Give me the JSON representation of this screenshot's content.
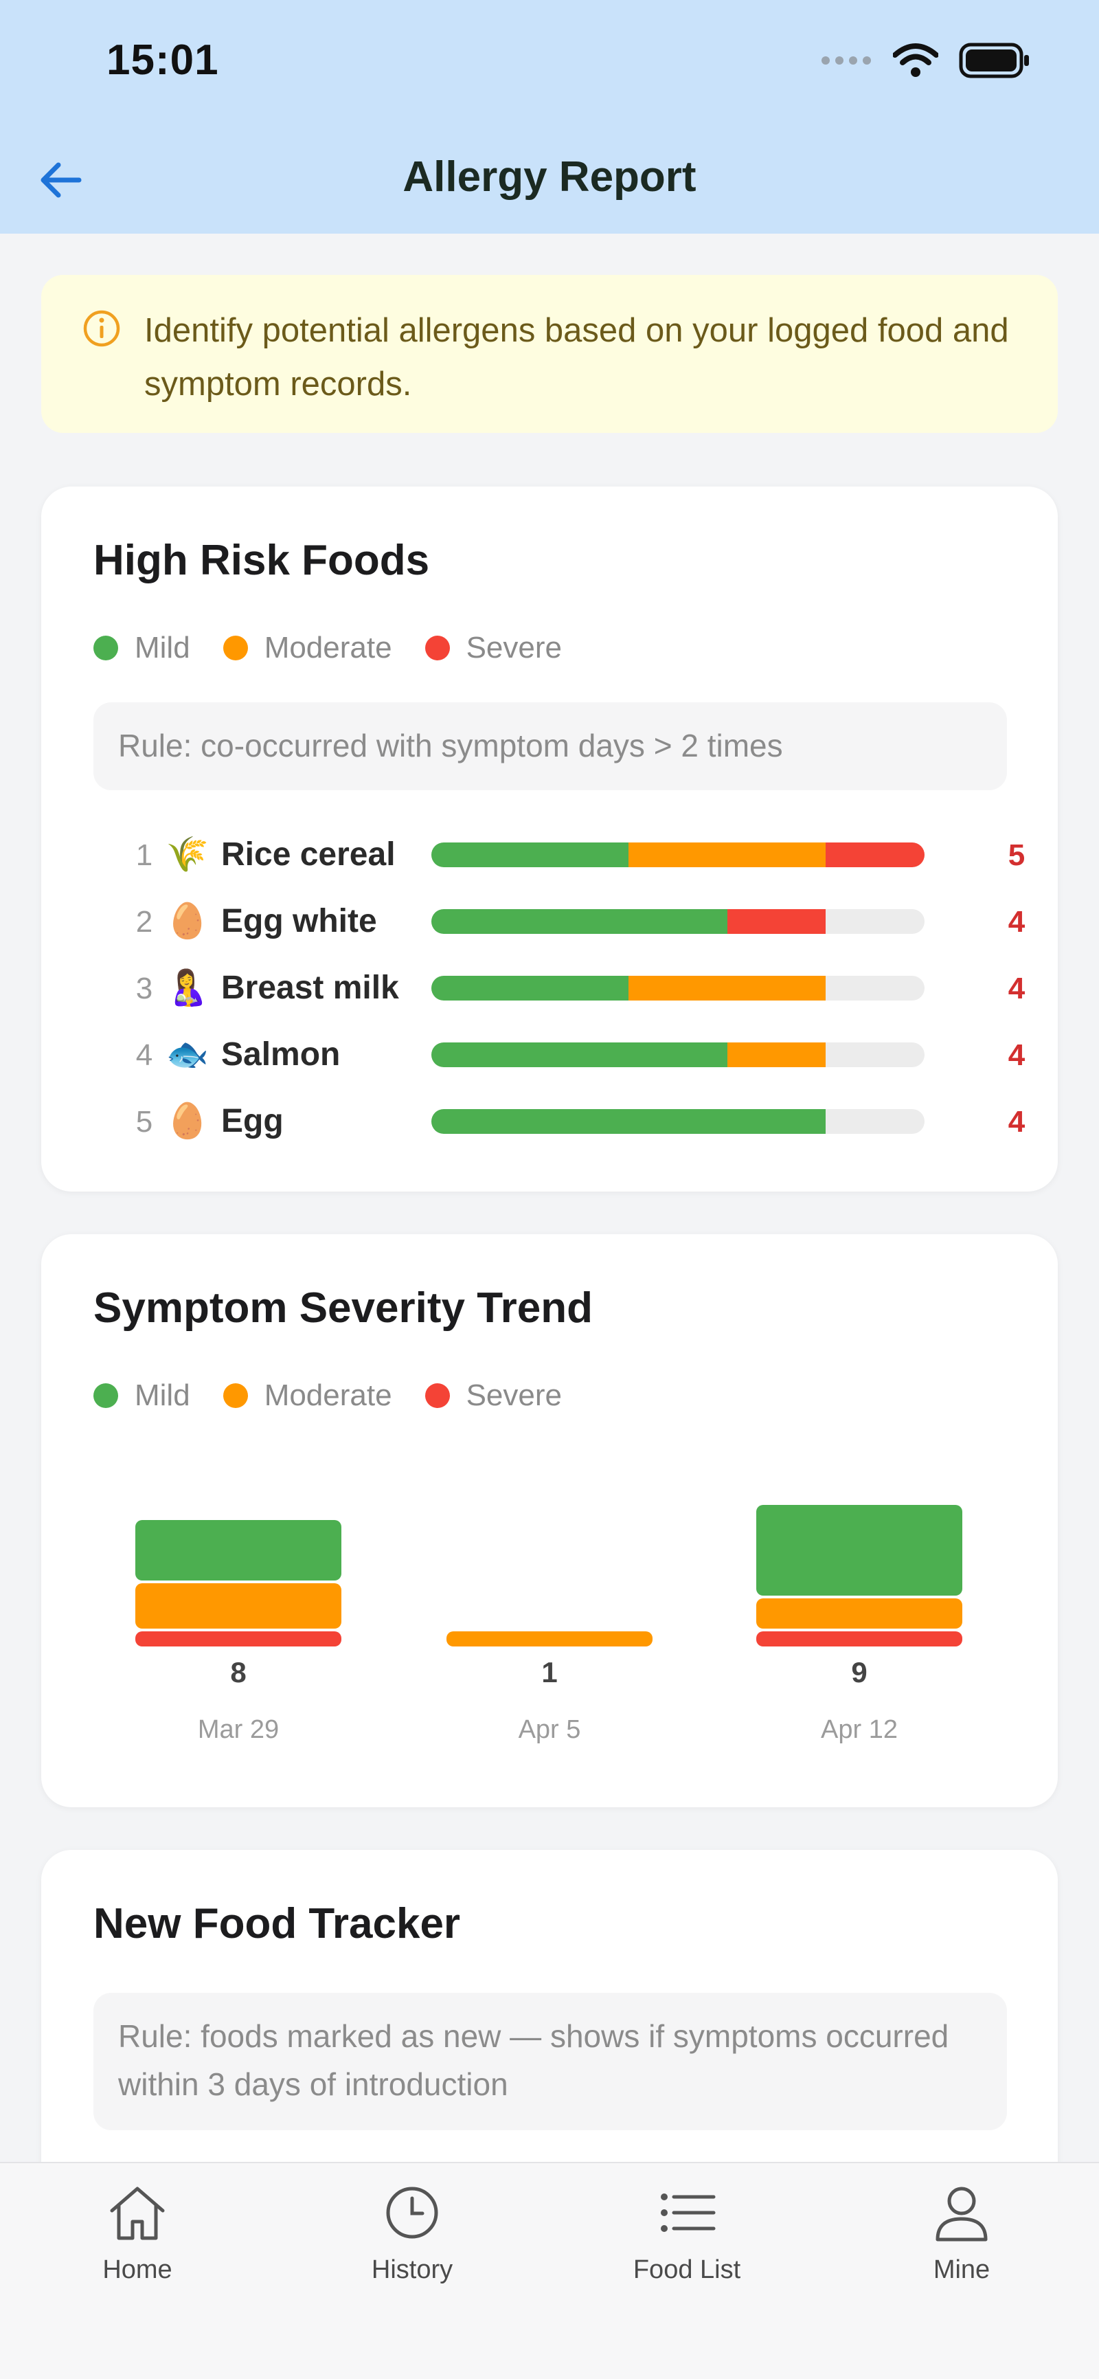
{
  "status_bar": {
    "time": "15:01"
  },
  "header": {
    "title": "Allergy Report",
    "back_icon": "arrow-left-icon"
  },
  "notice": {
    "text": "Identify potential allergens based on your logged food and symptom records.",
    "icon": "info-icon"
  },
  "colors": {
    "mild": "#4caf50",
    "moderate": "#ff9800",
    "severe": "#f44336",
    "accent": "#1e73d8"
  },
  "legend": {
    "mild": "Mild",
    "moderate": "Moderate",
    "severe": "Severe"
  },
  "high_risk": {
    "title": "High Risk Foods",
    "rule": "Rule: co-occurred with symptom days > 2 times",
    "max_total": 5,
    "items": [
      {
        "rank": "1",
        "emoji": "🌾",
        "name": "Rice cereal",
        "count": "5",
        "mild": 2,
        "moderate": 2,
        "severe": 1
      },
      {
        "rank": "2",
        "emoji": "🥚",
        "name": "Egg white",
        "count": "4",
        "mild": 3,
        "moderate": 0,
        "severe": 1
      },
      {
        "rank": "3",
        "emoji": "🤱",
        "name": "Breast milk",
        "count": "4",
        "mild": 2,
        "moderate": 2,
        "severe": 0
      },
      {
        "rank": "4",
        "emoji": "🐟",
        "name": "Salmon",
        "count": "4",
        "mild": 3,
        "moderate": 1,
        "severe": 0
      },
      {
        "rank": "5",
        "emoji": "🥚",
        "name": "Egg",
        "count": "4",
        "mild": 4,
        "moderate": 0,
        "severe": 0
      }
    ]
  },
  "trend": {
    "title": "Symptom Severity Trend",
    "chart_data": {
      "type": "bar",
      "stacked": true,
      "categories": [
        "Mar 29",
        "Apr 5",
        "Apr 12"
      ],
      "series": [
        {
          "name": "Mild",
          "values": [
            4,
            0,
            6
          ]
        },
        {
          "name": "Moderate",
          "values": [
            3,
            1,
            2
          ]
        },
        {
          "name": "Severe",
          "values": [
            1,
            0,
            1
          ]
        }
      ],
      "totals": [
        "8",
        "1",
        "9"
      ]
    }
  },
  "new_food": {
    "title": "New Food Tracker",
    "rule": "Rule: foods marked as new — shows if symptoms occurred within 3 days of introduction"
  },
  "tabbar": {
    "tabs": [
      {
        "label": "Home",
        "icon": "home-icon"
      },
      {
        "label": "History",
        "icon": "clock-icon"
      },
      {
        "label": "Food List",
        "icon": "list-icon"
      },
      {
        "label": "Mine",
        "icon": "user-icon"
      }
    ]
  }
}
